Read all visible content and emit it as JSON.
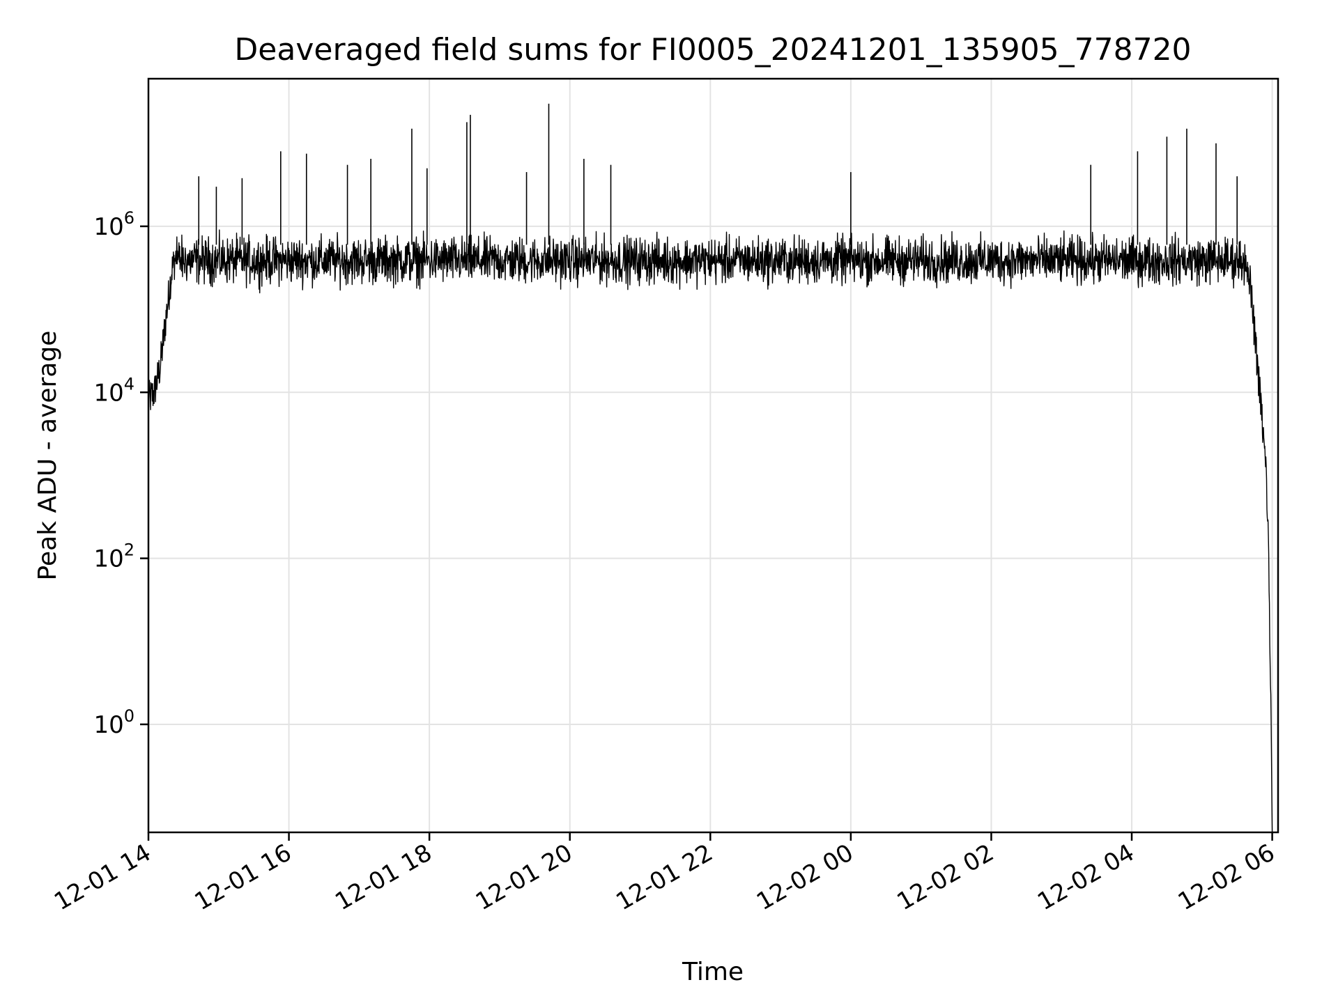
{
  "chart_data": {
    "type": "line",
    "title": "Deaveraged field sums for FI0005_20241201_135905_778720",
    "xlabel": "Time",
    "ylabel": "Peak ADU - average",
    "yscale": "log",
    "xlim": [
      "2024-12-01 14:00",
      "2024-12-02 06:05"
    ],
    "ylim": [
      0.05,
      60000000
    ],
    "grid": true,
    "color": "#000000",
    "x_ticks": [
      {
        "value": "2024-12-01 14:00",
        "label": "12-01 14"
      },
      {
        "value": "2024-12-01 16:00",
        "label": "12-01 16"
      },
      {
        "value": "2024-12-01 18:00",
        "label": "12-01 18"
      },
      {
        "value": "2024-12-01 20:00",
        "label": "12-01 20"
      },
      {
        "value": "2024-12-01 22:00",
        "label": "12-01 22"
      },
      {
        "value": "2024-12-02 00:00",
        "label": "12-02 00"
      },
      {
        "value": "2024-12-02 02:00",
        "label": "12-02 02"
      },
      {
        "value": "2024-12-02 04:00",
        "label": "12-02 04"
      },
      {
        "value": "2024-12-02 06:00",
        "label": "12-02 06"
      }
    ],
    "y_ticks": [
      {
        "value": 1,
        "base": "10",
        "exp": "0"
      },
      {
        "value": 100,
        "base": "10",
        "exp": "2"
      },
      {
        "value": 10000,
        "base": "10",
        "exp": "4"
      },
      {
        "value": 1000000,
        "base": "10",
        "exp": "6"
      }
    ],
    "series": [
      {
        "x": [
          "2024-12-01 14:00",
          "2024-12-01 14:05",
          "2024-12-01 14:10",
          "2024-12-01 14:15",
          "2024-12-01 14:20",
          "2024-12-01 14:25",
          "2024-12-01 14:30",
          "2024-12-01 14:45",
          "2024-12-01 15:00",
          "2024-12-01 15:30",
          "2024-12-01 16:00",
          "2024-12-01 17:00",
          "2024-12-01 18:00",
          "2024-12-01 19:00",
          "2024-12-01 20:00",
          "2024-12-01 21:00",
          "2024-12-01 22:00",
          "2024-12-01 23:00",
          "2024-12-02 00:00",
          "2024-12-02 01:00",
          "2024-12-02 02:00",
          "2024-12-02 03:00",
          "2024-12-02 04:00",
          "2024-12-02 05:00",
          "2024-12-02 05:35",
          "2024-12-02 05:40",
          "2024-12-02 05:45",
          "2024-12-02 05:50",
          "2024-12-02 05:55",
          "2024-12-02 05:57",
          "2024-12-02 05:59",
          "2024-12-02 06:00"
        ],
        "values": [
          8000,
          10000,
          20000,
          80000,
          300000,
          500000,
          500000,
          450000,
          420000,
          400000,
          450000,
          500000,
          520000,
          550000,
          580000,
          600000,
          600000,
          600000,
          620000,
          580000,
          560000,
          560000,
          560000,
          580000,
          600000,
          300000,
          50000,
          8000,
          1000,
          100,
          1,
          0.05
        ],
        "noise_band": {
          "low": 150000,
          "high": 1000000
        }
      }
    ],
    "spikes": [
      {
        "x": "2024-12-01 14:43",
        "value": 4000000
      },
      {
        "x": "2024-12-01 14:58",
        "value": 3000000
      },
      {
        "x": "2024-12-01 15:20",
        "value": 3800000
      },
      {
        "x": "2024-12-01 15:53",
        "value": 8000000
      },
      {
        "x": "2024-12-01 16:15",
        "value": 7500000
      },
      {
        "x": "2024-12-01 16:50",
        "value": 5500000
      },
      {
        "x": "2024-12-01 17:10",
        "value": 6500000
      },
      {
        "x": "2024-12-01 17:45",
        "value": 15000000
      },
      {
        "x": "2024-12-01 17:58",
        "value": 5000000
      },
      {
        "x": "2024-12-01 18:32",
        "value": 18000000
      },
      {
        "x": "2024-12-01 18:35",
        "value": 22000000
      },
      {
        "x": "2024-12-01 19:23",
        "value": 4500000
      },
      {
        "x": "2024-12-01 19:42",
        "value": 30000000
      },
      {
        "x": "2024-12-01 20:12",
        "value": 6500000
      },
      {
        "x": "2024-12-01 20:35",
        "value": 5500000
      },
      {
        "x": "2024-12-02 00:00",
        "value": 4500000
      },
      {
        "x": "2024-12-02 03:25",
        "value": 5500000
      },
      {
        "x": "2024-12-02 04:05",
        "value": 8000000
      },
      {
        "x": "2024-12-02 04:30",
        "value": 12000000
      },
      {
        "x": "2024-12-02 04:47",
        "value": 15000000
      },
      {
        "x": "2024-12-02 05:12",
        "value": 10000000
      },
      {
        "x": "2024-12-02 05:30",
        "value": 4000000
      }
    ]
  }
}
